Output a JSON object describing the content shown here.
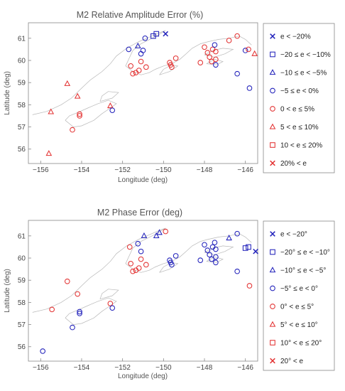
{
  "colors": {
    "blue": "#2222bb",
    "red": "#e33333",
    "coast": "#b8b8b8",
    "frame": "#888888"
  },
  "chart_data": [
    {
      "type": "scatter",
      "title": "M2 Relative Amplitude Error (%)",
      "xlabel": "Longitude (deg)",
      "ylabel": "Latitude (deg)",
      "xlim": [
        -156.6,
        -145.4
      ],
      "ylim": [
        55.35,
        61.7
      ],
      "xticks": [
        -156,
        -154,
        -152,
        -150,
        -148,
        -146
      ],
      "yticks": [
        56,
        57,
        58,
        59,
        60,
        61
      ],
      "xtick_labels": [
        "−156",
        "−154",
        "−152",
        "−150",
        "−148",
        "−146"
      ],
      "ytick_labels": [
        "56",
        "57",
        "58",
        "59",
        "60",
        "61"
      ],
      "grid": false,
      "legend_position": "right",
      "legend": [
        {
          "label": "e < −20%",
          "marker": "x",
          "color": "blue"
        },
        {
          "label": "−20 ≤ e < −10%",
          "marker": "square",
          "color": "blue"
        },
        {
          "label": "−10 ≤ e < −5%",
          "marker": "triangle",
          "color": "blue"
        },
        {
          "label": "−5 ≤ e < 0%",
          "marker": "circle",
          "color": "blue"
        },
        {
          "label": "0 < e ≤ 5%",
          "marker": "circle",
          "color": "red"
        },
        {
          "label": "5 < e ≤ 10%",
          "marker": "triangle",
          "color": "red"
        },
        {
          "label": "10 < e ≤ 20%",
          "marker": "square",
          "color": "red"
        },
        {
          "label": "20% < e",
          "marker": "x",
          "color": "red"
        }
      ],
      "points": [
        {
          "x": -155.6,
          "y": 55.8,
          "c": 5
        },
        {
          "x": -155.5,
          "y": 57.68,
          "c": 5
        },
        {
          "x": -154.7,
          "y": 58.95,
          "c": 5
        },
        {
          "x": -154.2,
          "y": 58.38,
          "c": 5
        },
        {
          "x": -154.1,
          "y": 57.58,
          "c": 4
        },
        {
          "x": -154.1,
          "y": 57.5,
          "c": 4
        },
        {
          "x": -154.45,
          "y": 56.87,
          "c": 4
        },
        {
          "x": -152.6,
          "y": 57.95,
          "c": 5
        },
        {
          "x": -152.5,
          "y": 57.75,
          "c": 3
        },
        {
          "x": -151.7,
          "y": 60.5,
          "c": 3
        },
        {
          "x": -151.25,
          "y": 60.65,
          "c": 2
        },
        {
          "x": -151.1,
          "y": 60.3,
          "c": 3
        },
        {
          "x": -151.0,
          "y": 60.45,
          "c": 3
        },
        {
          "x": -150.9,
          "y": 61.0,
          "c": 3
        },
        {
          "x": -150.5,
          "y": 61.1,
          "c": 1
        },
        {
          "x": -150.35,
          "y": 61.2,
          "c": 1
        },
        {
          "x": -149.9,
          "y": 61.2,
          "c": 0
        },
        {
          "x": -151.6,
          "y": 59.75,
          "c": 4
        },
        {
          "x": -151.5,
          "y": 59.4,
          "c": 4
        },
        {
          "x": -151.35,
          "y": 59.45,
          "c": 4
        },
        {
          "x": -151.2,
          "y": 59.55,
          "c": 4
        },
        {
          "x": -151.1,
          "y": 59.95,
          "c": 4
        },
        {
          "x": -150.85,
          "y": 59.7,
          "c": 4
        },
        {
          "x": -149.7,
          "y": 59.9,
          "c": 4
        },
        {
          "x": -149.65,
          "y": 59.8,
          "c": 4
        },
        {
          "x": -149.6,
          "y": 59.7,
          "c": 4
        },
        {
          "x": -149.4,
          "y": 60.1,
          "c": 4
        },
        {
          "x": -148.2,
          "y": 59.9,
          "c": 4
        },
        {
          "x": -148.0,
          "y": 60.6,
          "c": 4
        },
        {
          "x": -147.85,
          "y": 60.35,
          "c": 4
        },
        {
          "x": -147.75,
          "y": 60.15,
          "c": 4
        },
        {
          "x": -147.65,
          "y": 59.95,
          "c": 4
        },
        {
          "x": -147.6,
          "y": 60.5,
          "c": 4
        },
        {
          "x": -147.45,
          "y": 60.4,
          "c": 4
        },
        {
          "x": -147.45,
          "y": 60.05,
          "c": 4
        },
        {
          "x": -147.5,
          "y": 60.7,
          "c": 3
        },
        {
          "x": -147.45,
          "y": 59.8,
          "c": 3
        },
        {
          "x": -146.8,
          "y": 60.9,
          "c": 4
        },
        {
          "x": -146.4,
          "y": 61.1,
          "c": 4
        },
        {
          "x": -146.4,
          "y": 59.4,
          "c": 3
        },
        {
          "x": -146.0,
          "y": 60.45,
          "c": 3
        },
        {
          "x": -145.85,
          "y": 60.5,
          "c": 4
        },
        {
          "x": -145.8,
          "y": 58.75,
          "c": 3
        },
        {
          "x": -145.55,
          "y": 60.3,
          "c": 5
        }
      ]
    },
    {
      "type": "scatter",
      "title": "M2 Phase Error (deg)",
      "xlabel": "Longitude (deg)",
      "ylabel": "Latitude (deg)",
      "xlim": [
        -156.6,
        -145.4
      ],
      "ylim": [
        55.35,
        61.7
      ],
      "xticks": [
        -156,
        -154,
        -152,
        -150,
        -148,
        -146
      ],
      "yticks": [
        56,
        57,
        58,
        59,
        60,
        61
      ],
      "xtick_labels": [
        "−156",
        "−154",
        "−152",
        "−150",
        "−148",
        "−146"
      ],
      "ytick_labels": [
        "56",
        "57",
        "58",
        "59",
        "60",
        "61"
      ],
      "grid": false,
      "legend_position": "right",
      "legend": [
        {
          "label": "e < −20°",
          "marker": "x",
          "color": "blue"
        },
        {
          "label": "−20° ≤ e < −10°",
          "marker": "square",
          "color": "blue"
        },
        {
          "label": "−10° ≤ e < −5°",
          "marker": "triangle",
          "color": "blue"
        },
        {
          "label": "−5° ≤ e < 0°",
          "marker": "circle",
          "color": "blue"
        },
        {
          "label": "0° < e ≤ 5°",
          "marker": "circle",
          "color": "red"
        },
        {
          "label": "5° < e ≤ 10°",
          "marker": "triangle",
          "color": "red"
        },
        {
          "label": "10° < e ≤ 20°",
          "marker": "square",
          "color": "red"
        },
        {
          "label": "20° < e",
          "marker": "x",
          "color": "red"
        }
      ],
      "points": [
        {
          "x": -155.9,
          "y": 55.8,
          "c": 3
        },
        {
          "x": -155.45,
          "y": 57.68,
          "c": 4
        },
        {
          "x": -154.7,
          "y": 58.95,
          "c": 4
        },
        {
          "x": -154.2,
          "y": 58.38,
          "c": 4
        },
        {
          "x": -154.1,
          "y": 57.58,
          "c": 3
        },
        {
          "x": -154.1,
          "y": 57.5,
          "c": 3
        },
        {
          "x": -154.45,
          "y": 56.87,
          "c": 3
        },
        {
          "x": -152.6,
          "y": 57.95,
          "c": 4
        },
        {
          "x": -152.5,
          "y": 57.75,
          "c": 3
        },
        {
          "x": -151.65,
          "y": 60.5,
          "c": 4
        },
        {
          "x": -151.25,
          "y": 60.65,
          "c": 3
        },
        {
          "x": -151.1,
          "y": 60.3,
          "c": 3
        },
        {
          "x": -150.95,
          "y": 61.0,
          "c": 2
        },
        {
          "x": -150.35,
          "y": 61.0,
          "c": 2
        },
        {
          "x": -150.2,
          "y": 61.15,
          "c": 2
        },
        {
          "x": -149.9,
          "y": 61.2,
          "c": 4
        },
        {
          "x": -151.6,
          "y": 59.75,
          "c": 4
        },
        {
          "x": -151.5,
          "y": 59.4,
          "c": 4
        },
        {
          "x": -151.35,
          "y": 59.45,
          "c": 4
        },
        {
          "x": -151.2,
          "y": 59.55,
          "c": 4
        },
        {
          "x": -151.1,
          "y": 59.95,
          "c": 4
        },
        {
          "x": -150.85,
          "y": 59.7,
          "c": 4
        },
        {
          "x": -149.7,
          "y": 59.9,
          "c": 3
        },
        {
          "x": -149.65,
          "y": 59.8,
          "c": 3
        },
        {
          "x": -149.6,
          "y": 59.7,
          "c": 3
        },
        {
          "x": -149.4,
          "y": 60.1,
          "c": 3
        },
        {
          "x": -148.2,
          "y": 59.9,
          "c": 3
        },
        {
          "x": -148.0,
          "y": 60.6,
          "c": 3
        },
        {
          "x": -147.85,
          "y": 60.35,
          "c": 3
        },
        {
          "x": -147.75,
          "y": 60.15,
          "c": 3
        },
        {
          "x": -147.65,
          "y": 59.95,
          "c": 3
        },
        {
          "x": -147.6,
          "y": 60.5,
          "c": 3
        },
        {
          "x": -147.45,
          "y": 60.4,
          "c": 3
        },
        {
          "x": -147.45,
          "y": 60.05,
          "c": 3
        },
        {
          "x": -147.5,
          "y": 60.7,
          "c": 3
        },
        {
          "x": -147.45,
          "y": 59.8,
          "c": 3
        },
        {
          "x": -146.8,
          "y": 60.9,
          "c": 2
        },
        {
          "x": -146.4,
          "y": 61.1,
          "c": 3
        },
        {
          "x": -146.4,
          "y": 59.4,
          "c": 3
        },
        {
          "x": -146.0,
          "y": 60.45,
          "c": 1
        },
        {
          "x": -145.85,
          "y": 60.5,
          "c": 1
        },
        {
          "x": -145.8,
          "y": 58.75,
          "c": 4
        },
        {
          "x": -145.5,
          "y": 60.3,
          "c": 0
        }
      ]
    }
  ]
}
